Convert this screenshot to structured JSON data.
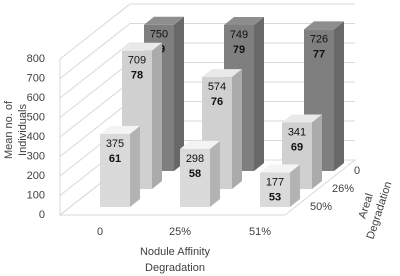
{
  "chart_data": {
    "type": "bar3d",
    "ylabel": [
      "Mean no. of",
      "Individuals"
    ],
    "xlabel": [
      "Nodule Affinity",
      "Degradation"
    ],
    "zlabel": [
      "Areal",
      "Degradation"
    ],
    "categories": [
      "0",
      "25%",
      "51%"
    ],
    "series": [
      {
        "name": "0",
        "color": "#7f7f7f",
        "values": [
          750,
          749,
          726
        ],
        "inner_values": [
          79,
          79,
          77
        ]
      },
      {
        "name": "26%",
        "color": "#d0d0d0",
        "values": [
          709,
          574,
          341
        ],
        "inner_values": [
          78,
          76,
          69
        ]
      },
      {
        "name": "50%",
        "color": "#dadada",
        "values": [
          375,
          298,
          177
        ],
        "inner_values": [
          61,
          58,
          53
        ]
      }
    ],
    "ylim": [
      0,
      800
    ],
    "yticks": [
      0,
      100,
      200,
      300,
      400,
      500,
      600,
      700,
      800
    ],
    "grid": true
  }
}
